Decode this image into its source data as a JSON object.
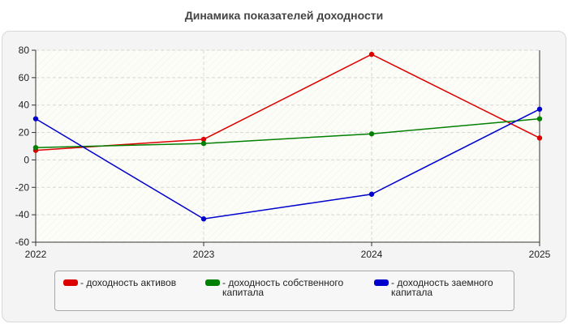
{
  "chart_data": {
    "type": "line",
    "title": "Динамика показателей доходности",
    "xlabel": "",
    "ylabel": "",
    "categories": [
      "2022",
      "2023",
      "2024",
      "2025"
    ],
    "ylim": [
      -60,
      80
    ],
    "yticks": [
      80,
      60,
      40,
      20,
      0,
      -20,
      -40,
      -60
    ],
    "grid": true,
    "legend_position": "bottom",
    "series": [
      {
        "name": "- доходность активов",
        "color": "#dd0000",
        "values": [
          7,
          15,
          77,
          16
        ]
      },
      {
        "name": "- доходность собственного капитала",
        "color": "#008000",
        "values": [
          9,
          12,
          19,
          30
        ]
      },
      {
        "name": "- доходность заемного капитала",
        "color": "#0000cc",
        "values": [
          30,
          -43,
          -25,
          37
        ]
      }
    ]
  }
}
